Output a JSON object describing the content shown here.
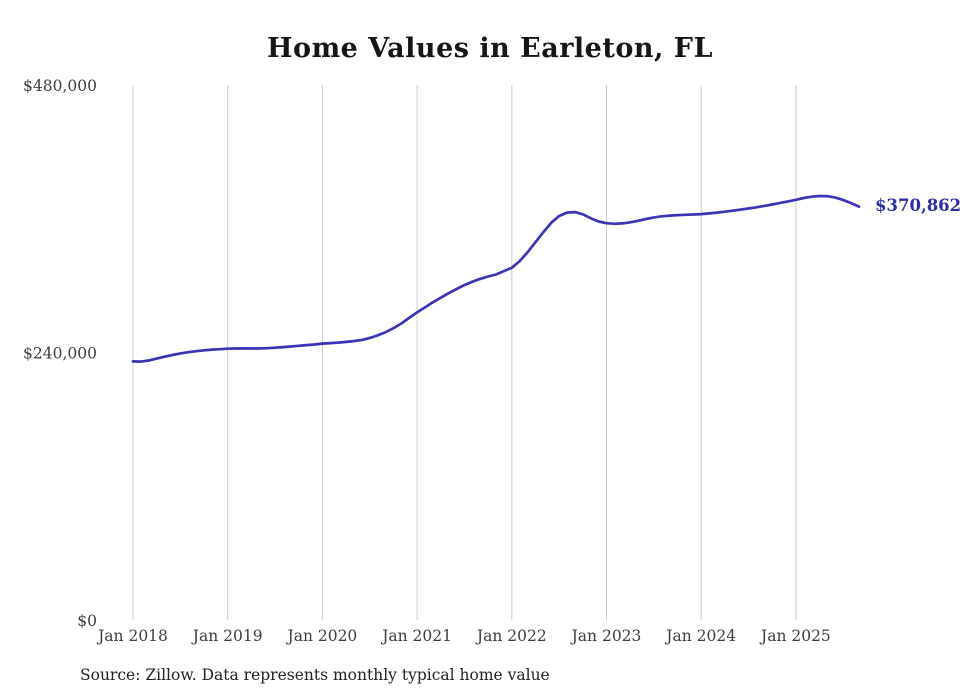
{
  "title": "Home Values in Earleton, FL",
  "end_label": "$370,862",
  "source_note": "Source: Zillow. Data represents monthly typical home value",
  "colors": {
    "line": "#3a35b5",
    "grid": "#cccccc",
    "axis_text": "#3d3d3d",
    "end_label": "#2d2daa",
    "title": "#161616"
  },
  "chart_data": {
    "type": "line",
    "title": "Home Values in Earleton, FL",
    "xlabel": "",
    "ylabel": "",
    "ylim": [
      0,
      480000
    ],
    "grid": "vertical-only",
    "legend": "none",
    "y_ticks": [
      0,
      240000,
      480000
    ],
    "y_tick_labels": [
      "$0",
      "$240,000",
      "$480,000"
    ],
    "x_tick_labels": [
      "Jan 2018",
      "Jan 2019",
      "Jan 2020",
      "Jan 2021",
      "Jan 2022",
      "Jan 2023",
      "Jan 2024",
      "Jan 2025"
    ],
    "x_start": "2018-01",
    "x_step_months": 1,
    "end_value": 370862,
    "series": [
      {
        "name": "Monthly typical home value",
        "values": [
          232000,
          231800,
          232800,
          234500,
          236200,
          237800,
          239200,
          240300,
          241200,
          242000,
          242600,
          243000,
          243400,
          243600,
          243700,
          243600,
          243700,
          243900,
          244300,
          244800,
          245400,
          246000,
          246600,
          247200,
          248000,
          248400,
          248900,
          249500,
          250200,
          251300,
          253000,
          255300,
          258200,
          261800,
          266000,
          271000,
          276000,
          280500,
          285000,
          289200,
          293200,
          297000,
          300500,
          303500,
          306000,
          308200,
          310000,
          313000,
          316000,
          322000,
          330000,
          339000,
          348000,
          356500,
          362500,
          365500,
          366000,
          364000,
          360500,
          357500,
          356000,
          355500,
          355800,
          356800,
          358200,
          359800,
          361200,
          362200,
          362800,
          363200,
          363500,
          363800,
          364200,
          364800,
          365500,
          366300,
          367200,
          368200,
          369200,
          370300,
          371500,
          372800,
          374200,
          375600,
          377000,
          378600,
          379800,
          380400,
          380200,
          379000,
          376800,
          374000,
          370862
        ]
      }
    ]
  }
}
